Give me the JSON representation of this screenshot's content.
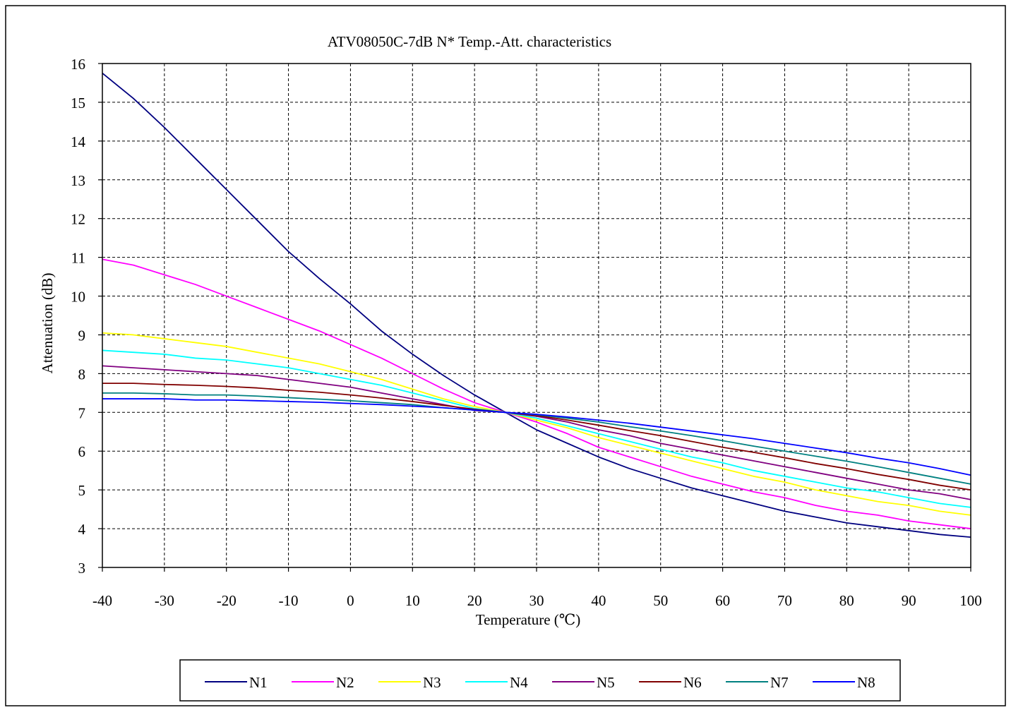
{
  "chart_data": {
    "type": "line",
    "title": "ATV08050C-7dB  N* Temp.-Att. characteristics",
    "xlabel": "Temperature (℃)",
    "ylabel": "Attenuation (dB)",
    "xlim": [
      -40,
      100
    ],
    "ylim": [
      3,
      16
    ],
    "xticks": [
      -40,
      -30,
      -20,
      -10,
      0,
      10,
      20,
      30,
      40,
      50,
      60,
      70,
      80,
      90,
      100
    ],
    "yticks": [
      3,
      4,
      5,
      6,
      7,
      8,
      9,
      10,
      11,
      12,
      13,
      14,
      15,
      16
    ],
    "grid": true,
    "legend_position": "bottom",
    "x": [
      -40,
      -35,
      -30,
      -25,
      -20,
      -15,
      -10,
      -5,
      0,
      5,
      10,
      15,
      20,
      25,
      30,
      35,
      40,
      45,
      50,
      55,
      60,
      65,
      70,
      75,
      80,
      85,
      90,
      95,
      100
    ],
    "series": [
      {
        "name": "N1",
        "color": "#000080",
        "values": [
          15.75,
          15.1,
          14.35,
          13.55,
          12.75,
          11.95,
          11.15,
          10.45,
          9.8,
          9.1,
          8.5,
          7.95,
          7.45,
          7.0,
          6.55,
          6.2,
          5.85,
          5.55,
          5.3,
          5.05,
          4.85,
          4.65,
          4.45,
          4.3,
          4.15,
          4.05,
          3.95,
          3.85,
          3.78
        ]
      },
      {
        "name": "N2",
        "color": "#ff00ff",
        "values": [
          10.95,
          10.8,
          10.55,
          10.3,
          10.0,
          9.7,
          9.4,
          9.1,
          8.75,
          8.4,
          8.0,
          7.6,
          7.25,
          7.0,
          6.75,
          6.45,
          6.1,
          5.85,
          5.6,
          5.35,
          5.15,
          4.95,
          4.8,
          4.6,
          4.45,
          4.35,
          4.2,
          4.1,
          4.0
        ]
      },
      {
        "name": "N3",
        "color": "#ffff00",
        "values": [
          9.05,
          9.0,
          8.9,
          8.8,
          8.7,
          8.55,
          8.4,
          8.25,
          8.05,
          7.85,
          7.6,
          7.35,
          7.15,
          7.0,
          6.8,
          6.6,
          6.35,
          6.15,
          5.95,
          5.75,
          5.55,
          5.35,
          5.2,
          5.0,
          4.85,
          4.7,
          4.6,
          4.45,
          4.35
        ]
      },
      {
        "name": "N4",
        "color": "#00ffff",
        "values": [
          8.6,
          8.55,
          8.5,
          8.4,
          8.35,
          8.25,
          8.15,
          8.0,
          7.85,
          7.7,
          7.5,
          7.3,
          7.1,
          7.0,
          6.85,
          6.65,
          6.45,
          6.25,
          6.05,
          5.85,
          5.7,
          5.5,
          5.35,
          5.2,
          5.05,
          4.95,
          4.8,
          4.65,
          4.55
        ]
      },
      {
        "name": "N5",
        "color": "#800080",
        "values": [
          8.2,
          8.15,
          8.1,
          8.05,
          8.0,
          7.95,
          7.85,
          7.75,
          7.65,
          7.5,
          7.35,
          7.2,
          7.05,
          7.0,
          6.9,
          6.75,
          6.55,
          6.4,
          6.2,
          6.05,
          5.9,
          5.75,
          5.6,
          5.45,
          5.3,
          5.15,
          5.0,
          4.9,
          4.75
        ]
      },
      {
        "name": "N6",
        "color": "#800000",
        "values": [
          7.75,
          7.75,
          7.72,
          7.7,
          7.67,
          7.63,
          7.57,
          7.52,
          7.45,
          7.37,
          7.28,
          7.18,
          7.08,
          7.0,
          6.92,
          6.8,
          6.67,
          6.53,
          6.4,
          6.25,
          6.1,
          5.97,
          5.83,
          5.68,
          5.55,
          5.4,
          5.27,
          5.12,
          5.0
        ]
      },
      {
        "name": "N7",
        "color": "#008080",
        "values": [
          7.5,
          7.5,
          7.48,
          7.45,
          7.45,
          7.42,
          7.38,
          7.34,
          7.3,
          7.25,
          7.2,
          7.12,
          7.06,
          7.0,
          6.94,
          6.85,
          6.75,
          6.63,
          6.52,
          6.4,
          6.27,
          6.13,
          6.0,
          5.87,
          5.74,
          5.6,
          5.45,
          5.3,
          5.15
        ]
      },
      {
        "name": "N8",
        "color": "#0000ff",
        "values": [
          7.35,
          7.35,
          7.35,
          7.32,
          7.32,
          7.3,
          7.28,
          7.26,
          7.23,
          7.2,
          7.16,
          7.12,
          7.06,
          7.0,
          6.95,
          6.88,
          6.8,
          6.72,
          6.62,
          6.52,
          6.42,
          6.32,
          6.2,
          6.08,
          5.96,
          5.82,
          5.7,
          5.55,
          5.38
        ]
      }
    ]
  }
}
